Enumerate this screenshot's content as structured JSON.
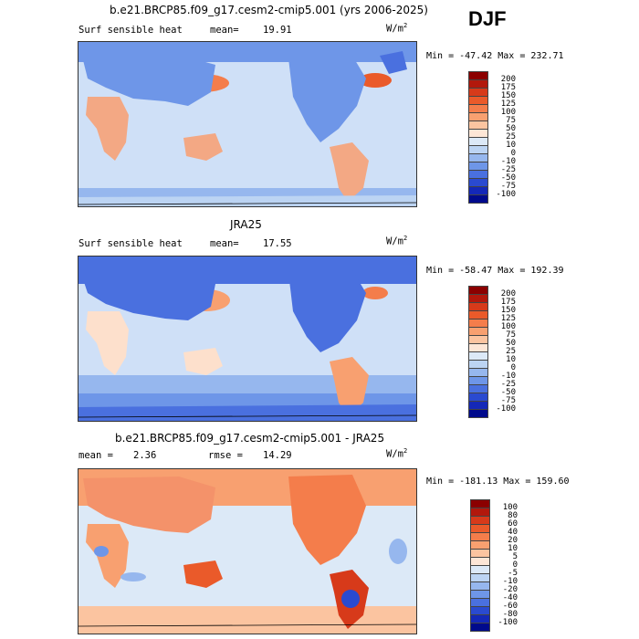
{
  "season": "DJF",
  "units_base": "W/m",
  "units_exp": "2",
  "panels": [
    {
      "title": "b.e21.BRCP85.f09_g17.cesm2-cmip5.001 (yrs 2006-2025)",
      "left_label": "Surf sensible heat",
      "mean_label": "mean=",
      "mean_value": "19.91",
      "minmax": "Min = -47.42 Max = 232.71",
      "levels": [
        "200",
        "175",
        "150",
        "125",
        "100",
        "75",
        "50",
        "25",
        "10",
        "0",
        "-10",
        "-25",
        "-50",
        "-75",
        "-100"
      ],
      "colors": [
        "#8b0000",
        "#b2180c",
        "#d73a1a",
        "#ea5a2a",
        "#f47d4b",
        "#f8a070",
        "#fbc4a0",
        "#fde6d6",
        "#dce9f7",
        "#bcd4f3",
        "#96b7ee",
        "#6e96e8",
        "#4a70df",
        "#2a4ad0",
        "#1428b8",
        "#000a8c"
      ],
      "ocean": "#cfe0f7",
      "land": "#f3a884"
    },
    {
      "title": "JRA25",
      "left_label": "Surf sensible heat",
      "mean_label": "mean=",
      "mean_value": "17.55",
      "minmax": "Min = -58.47 Max = 192.39",
      "levels": [
        "200",
        "175",
        "150",
        "125",
        "100",
        "75",
        "50",
        "25",
        "10",
        "0",
        "-10",
        "-25",
        "-50",
        "-75",
        "-100"
      ],
      "colors": [
        "#8b0000",
        "#b2180c",
        "#d73a1a",
        "#ea5a2a",
        "#f47d4b",
        "#f8a070",
        "#fbc4a0",
        "#fde6d6",
        "#dce9f7",
        "#bcd4f3",
        "#96b7ee",
        "#6e96e8",
        "#4a70df",
        "#2a4ad0",
        "#1428b8",
        "#000a8c"
      ],
      "ocean": "#cfe0f7",
      "land": "#fde0cc"
    },
    {
      "title": "b.e21.BRCP85.f09_g17.cesm2-cmip5.001 - JRA25",
      "mean_label": "mean =",
      "mean_value": "2.36",
      "rmse_label": "rmse =",
      "rmse_value": "14.29",
      "minmax": "Min = -181.13 Max = 159.60",
      "levels": [
        "100",
        "80",
        "60",
        "40",
        "20",
        "10",
        "5",
        "0",
        "-5",
        "-10",
        "-20",
        "-40",
        "-60",
        "-80",
        "-100"
      ],
      "colors": [
        "#8b0000",
        "#b2180c",
        "#d73a1a",
        "#ea5a2a",
        "#f47d4b",
        "#f8a070",
        "#fbc4a0",
        "#fde6d6",
        "#dce9f7",
        "#bcd4f3",
        "#96b7ee",
        "#6e96e8",
        "#4a70df",
        "#2a4ad0",
        "#1428b8",
        "#000a8c"
      ],
      "ocean": "#dce9f7",
      "land": "#f4926a"
    }
  ]
}
